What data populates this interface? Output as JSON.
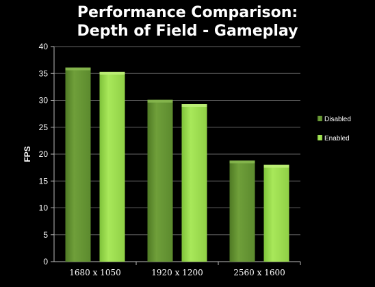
{
  "chart_data": {
    "type": "bar",
    "title_lines": [
      "Performance Comparison:",
      "Depth of Field - Gameplay"
    ],
    "categories": [
      "1680 x 1050",
      "1920 x 1200",
      "2560 x 1600"
    ],
    "series": [
      {
        "name": "Disabled",
        "values": [
          36.1,
          30.1,
          18.8
        ],
        "color": "#6a9b36"
      },
      {
        "name": "Enabled",
        "values": [
          35.3,
          29.3,
          18.0
        ],
        "color": "#9fe04e"
      }
    ],
    "xlabel": "",
    "ylabel": "FPS",
    "ylim": [
      0,
      40
    ],
    "yticks": [
      0,
      5,
      10,
      15,
      20,
      25,
      30,
      35,
      40
    ],
    "grid": true,
    "legend_position": "right",
    "background": "#000000",
    "text_color": "#ffffff",
    "grid_color": "#666666"
  }
}
